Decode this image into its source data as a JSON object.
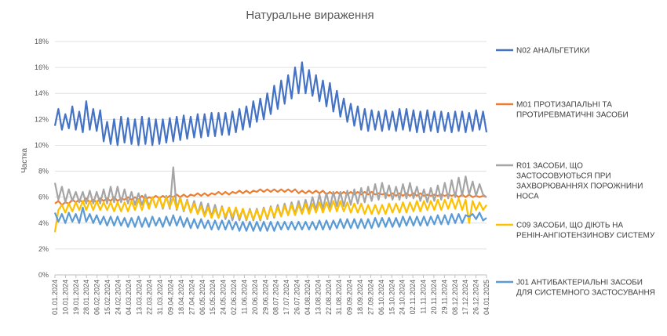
{
  "chart_data": {
    "type": "line",
    "title": "Натуральне вираження",
    "ylabel": "Частка",
    "xlabel": "",
    "ylim": [
      0,
      0.18
    ],
    "y_ticks": [
      "0%",
      "2%",
      "4%",
      "6%",
      "8%",
      "10%",
      "12%",
      "14%",
      "16%",
      "18%"
    ],
    "x_tick_labels": [
      "01.01.2024",
      "10.01.2024",
      "19.01.2024",
      "28.01.2024",
      "06.02.2024",
      "15.02.2024",
      "24.02.2024",
      "04.03.2024",
      "13.03.2024",
      "22.03.2024",
      "31.03.2024",
      "09.04.2024",
      "18.04.2024",
      "27.04.2024",
      "06.05.2024",
      "15.05.2024",
      "24.05.2024",
      "02.06.2024",
      "11.06.2024",
      "20.06.2024",
      "29.06.2024",
      "08.07.2024",
      "17.07.2024",
      "26.07.2024",
      "04.08.2024",
      "13.08.2024",
      "22.08.2024",
      "31.08.2024",
      "09.09.2024",
      "18.09.2024",
      "27.09.2024",
      "06.10.2024",
      "15.10.2024",
      "24.10.2024",
      "02.11.2024",
      "11.11.2024",
      "20.11.2024",
      "29.11.2024",
      "08.12.2024",
      "17.12.2024",
      "26.12.2024",
      "04.01.2025"
    ],
    "grid": true,
    "legend_position": "right",
    "x_range": [
      "01.01.2024",
      "06.01.2025"
    ],
    "x_step_days": 3,
    "weekly_cycle": "values repeat a weekly pattern; series values below are weekly baseline and weekly peak levels sampled every 3 days",
    "series": [
      {
        "name": "N02 АНАЛЬГЕТИКИ",
        "color": "#4472C4",
        "values": [
          0.115,
          0.128,
          0.112,
          0.124,
          0.113,
          0.13,
          0.112,
          0.126,
          0.11,
          0.134,
          0.112,
          0.128,
          0.111,
          0.127,
          0.103,
          0.118,
          0.101,
          0.12,
          0.1,
          0.122,
          0.102,
          0.121,
          0.101,
          0.12,
          0.1,
          0.122,
          0.101,
          0.121,
          0.1,
          0.12,
          0.101,
          0.12,
          0.102,
          0.121,
          0.103,
          0.122,
          0.104,
          0.123,
          0.105,
          0.122,
          0.106,
          0.124,
          0.106,
          0.124,
          0.107,
          0.125,
          0.107,
          0.125,
          0.108,
          0.125,
          0.108,
          0.126,
          0.11,
          0.128,
          0.112,
          0.13,
          0.114,
          0.134,
          0.118,
          0.136,
          0.12,
          0.14,
          0.124,
          0.146,
          0.128,
          0.15,
          0.132,
          0.154,
          0.136,
          0.16,
          0.14,
          0.164,
          0.14,
          0.158,
          0.138,
          0.154,
          0.134,
          0.15,
          0.13,
          0.148,
          0.126,
          0.142,
          0.122,
          0.136,
          0.118,
          0.132,
          0.115,
          0.13,
          0.112,
          0.128,
          0.111,
          0.127,
          0.112,
          0.126,
          0.111,
          0.127,
          0.112,
          0.126,
          0.111,
          0.128,
          0.112,
          0.128,
          0.111,
          0.127,
          0.11,
          0.126,
          0.11,
          0.127,
          0.111,
          0.126,
          0.11,
          0.126,
          0.111,
          0.125,
          0.11,
          0.126,
          0.111,
          0.126,
          0.11,
          0.125,
          0.111,
          0.127,
          0.112,
          0.126,
          0.11
        ]
      },
      {
        "name": "M01 ПРОТИЗАПАЛЬНІ ТА ПРОТИРЕВМАТИЧНІ ЗАСОБИ",
        "color": "#ED7D31",
        "values": [
          0.055,
          0.057,
          0.054,
          0.056,
          0.055,
          0.058,
          0.056,
          0.058,
          0.056,
          0.059,
          0.056,
          0.058,
          0.056,
          0.059,
          0.057,
          0.059,
          0.057,
          0.06,
          0.057,
          0.059,
          0.058,
          0.06,
          0.058,
          0.06,
          0.058,
          0.061,
          0.058,
          0.06,
          0.059,
          0.061,
          0.059,
          0.061,
          0.059,
          0.061,
          0.06,
          0.062,
          0.06,
          0.062,
          0.06,
          0.062,
          0.061,
          0.063,
          0.061,
          0.063,
          0.061,
          0.063,
          0.062,
          0.064,
          0.062,
          0.064,
          0.062,
          0.064,
          0.063,
          0.065,
          0.063,
          0.065,
          0.063,
          0.065,
          0.064,
          0.066,
          0.064,
          0.066,
          0.064,
          0.066,
          0.064,
          0.066,
          0.064,
          0.066,
          0.064,
          0.066,
          0.063,
          0.065,
          0.063,
          0.065,
          0.063,
          0.065,
          0.063,
          0.065,
          0.062,
          0.064,
          0.062,
          0.064,
          0.062,
          0.064,
          0.062,
          0.064,
          0.062,
          0.064,
          0.062,
          0.064,
          0.062,
          0.064,
          0.062,
          0.063,
          0.062,
          0.063,
          0.061,
          0.063,
          0.061,
          0.063,
          0.061,
          0.063,
          0.061,
          0.063,
          0.061,
          0.063,
          0.061,
          0.062,
          0.061,
          0.062,
          0.061,
          0.062,
          0.061,
          0.062,
          0.061,
          0.062,
          0.06,
          0.062,
          0.06,
          0.062,
          0.06,
          0.061,
          0.06,
          0.061,
          0.06
        ]
      },
      {
        "name": "R01 ЗАСОБИ, ЩО ЗАСТОСОВУЮТЬСЯ ПРИ ЗАХВОРЮВАННЯХ ПОРОЖНИНИ НОСА",
        "color": "#A5A5A5",
        "values": [
          0.071,
          0.058,
          0.068,
          0.056,
          0.066,
          0.057,
          0.064,
          0.056,
          0.064,
          0.055,
          0.065,
          0.055,
          0.064,
          0.055,
          0.066,
          0.055,
          0.068,
          0.056,
          0.068,
          0.056,
          0.066,
          0.055,
          0.064,
          0.054,
          0.063,
          0.054,
          0.062,
          0.053,
          0.06,
          0.052,
          0.06,
          0.051,
          0.061,
          0.051,
          0.083,
          0.05,
          0.06,
          0.049,
          0.058,
          0.048,
          0.057,
          0.047,
          0.056,
          0.046,
          0.055,
          0.045,
          0.054,
          0.044,
          0.053,
          0.043,
          0.052,
          0.042,
          0.052,
          0.042,
          0.051,
          0.042,
          0.051,
          0.042,
          0.051,
          0.042,
          0.052,
          0.043,
          0.053,
          0.044,
          0.054,
          0.045,
          0.055,
          0.046,
          0.056,
          0.047,
          0.057,
          0.048,
          0.058,
          0.049,
          0.06,
          0.05,
          0.062,
          0.051,
          0.063,
          0.052,
          0.064,
          0.053,
          0.064,
          0.053,
          0.065,
          0.054,
          0.066,
          0.055,
          0.067,
          0.056,
          0.068,
          0.057,
          0.07,
          0.058,
          0.071,
          0.059,
          0.069,
          0.058,
          0.068,
          0.058,
          0.07,
          0.059,
          0.071,
          0.059,
          0.068,
          0.057,
          0.066,
          0.056,
          0.067,
          0.057,
          0.069,
          0.058,
          0.071,
          0.059,
          0.073,
          0.06,
          0.075,
          0.061,
          0.076,
          0.062,
          0.072,
          0.061,
          0.07,
          0.062,
          0.06
        ]
      },
      {
        "name": "C09 ЗАСОБИ, ЩО ДІЮТЬ НА РЕНІН-АНГІОТЕНЗИНОВУ СИСТЕМУ",
        "color": "#FFC000",
        "values": [
          0.033,
          0.05,
          0.054,
          0.048,
          0.055,
          0.049,
          0.056,
          0.05,
          0.057,
          0.05,
          0.057,
          0.05,
          0.057,
          0.05,
          0.056,
          0.05,
          0.056,
          0.049,
          0.056,
          0.049,
          0.056,
          0.049,
          0.057,
          0.05,
          0.058,
          0.05,
          0.059,
          0.051,
          0.06,
          0.052,
          0.06,
          0.052,
          0.06,
          0.052,
          0.06,
          0.051,
          0.059,
          0.05,
          0.057,
          0.048,
          0.055,
          0.047,
          0.053,
          0.045,
          0.052,
          0.044,
          0.051,
          0.044,
          0.052,
          0.045,
          0.052,
          0.045,
          0.052,
          0.044,
          0.051,
          0.043,
          0.05,
          0.043,
          0.05,
          0.043,
          0.051,
          0.044,
          0.052,
          0.045,
          0.052,
          0.045,
          0.053,
          0.046,
          0.054,
          0.046,
          0.054,
          0.047,
          0.055,
          0.047,
          0.055,
          0.048,
          0.056,
          0.048,
          0.056,
          0.049,
          0.057,
          0.049,
          0.057,
          0.049,
          0.056,
          0.048,
          0.055,
          0.048,
          0.055,
          0.047,
          0.054,
          0.047,
          0.054,
          0.047,
          0.054,
          0.047,
          0.055,
          0.048,
          0.055,
          0.048,
          0.056,
          0.048,
          0.056,
          0.049,
          0.057,
          0.049,
          0.057,
          0.05,
          0.057,
          0.05,
          0.058,
          0.05,
          0.058,
          0.051,
          0.059,
          0.051,
          0.059,
          0.05,
          0.058,
          0.04,
          0.057,
          0.05,
          0.056,
          0.05,
          0.054
        ]
      },
      {
        "name": "J01 АНТИБАКТЕРІАЛЬНІ ЗАСОБИ ДЛЯ СИСТЕМНОГО ЗАСТОСУВАННЯ",
        "color": "#5B9BD5",
        "values": [
          0.048,
          0.041,
          0.047,
          0.04,
          0.048,
          0.041,
          0.047,
          0.04,
          0.052,
          0.041,
          0.047,
          0.04,
          0.046,
          0.039,
          0.045,
          0.038,
          0.045,
          0.038,
          0.045,
          0.038,
          0.044,
          0.037,
          0.044,
          0.037,
          0.045,
          0.037,
          0.044,
          0.037,
          0.045,
          0.038,
          0.044,
          0.037,
          0.045,
          0.038,
          0.046,
          0.038,
          0.045,
          0.037,
          0.044,
          0.036,
          0.043,
          0.036,
          0.043,
          0.036,
          0.042,
          0.035,
          0.042,
          0.035,
          0.042,
          0.035,
          0.042,
          0.035,
          0.041,
          0.034,
          0.041,
          0.034,
          0.041,
          0.034,
          0.041,
          0.034,
          0.041,
          0.034,
          0.041,
          0.034,
          0.041,
          0.035,
          0.041,
          0.035,
          0.041,
          0.035,
          0.041,
          0.035,
          0.041,
          0.035,
          0.041,
          0.035,
          0.042,
          0.035,
          0.042,
          0.035,
          0.042,
          0.036,
          0.043,
          0.036,
          0.043,
          0.036,
          0.043,
          0.036,
          0.043,
          0.036,
          0.043,
          0.036,
          0.044,
          0.037,
          0.044,
          0.037,
          0.044,
          0.037,
          0.044,
          0.037,
          0.045,
          0.038,
          0.045,
          0.038,
          0.045,
          0.038,
          0.045,
          0.038,
          0.045,
          0.039,
          0.046,
          0.039,
          0.046,
          0.039,
          0.047,
          0.04,
          0.047,
          0.04,
          0.046,
          0.045,
          0.047,
          0.043,
          0.048,
          0.042,
          0.044
        ]
      }
    ]
  }
}
